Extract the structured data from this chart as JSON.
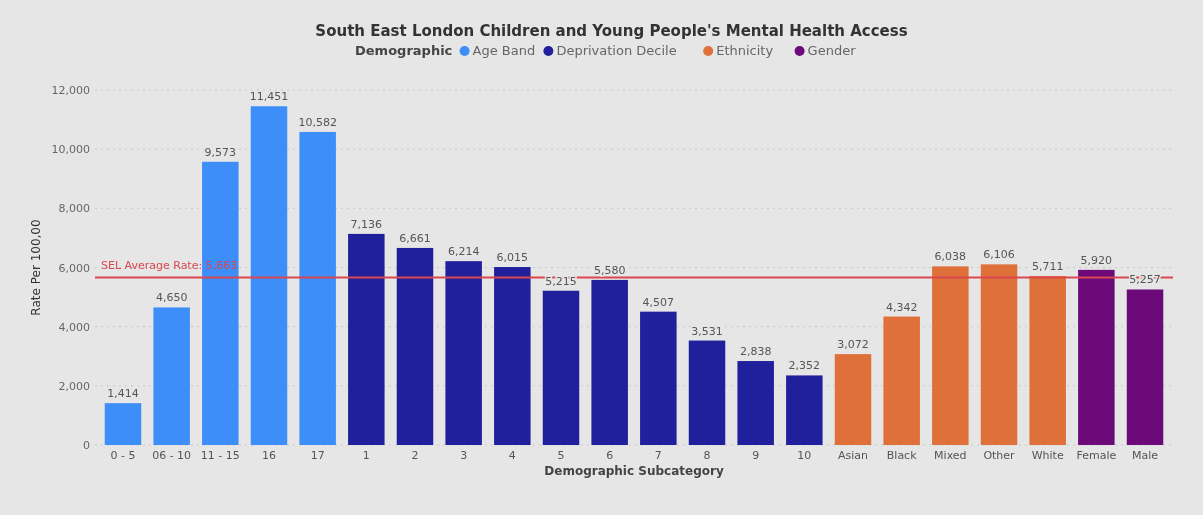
{
  "chart_data": {
    "type": "bar",
    "title": "South East London Children and Young People's Mental Health Access",
    "xlabel": "Demographic Subcategory",
    "ylabel": "Rate Per 100,00",
    "legend_title": "Demographic",
    "legend": "top",
    "categories": [
      "0 - 5",
      "06 - 10",
      "11 - 15",
      "16",
      "17",
      "1",
      "2",
      "3",
      "4",
      "5",
      "6",
      "7",
      "8",
      "9",
      "10",
      "Asian",
      "Black",
      "Mixed",
      "Other",
      "White",
      "Female",
      "Male"
    ],
    "series": [
      {
        "name": "Age Band",
        "color": "#3d8ef8",
        "values": [
          1414,
          4650,
          9573,
          11451,
          10582,
          null,
          null,
          null,
          null,
          null,
          null,
          null,
          null,
          null,
          null,
          null,
          null,
          null,
          null,
          null,
          null,
          null
        ],
        "value_labels": [
          "1,414",
          "4,650",
          "9,573",
          "11,451",
          "10,582",
          null,
          null,
          null,
          null,
          null,
          null,
          null,
          null,
          null,
          null,
          null,
          null,
          null,
          null,
          null,
          null,
          null
        ]
      },
      {
        "name": "Deprivation Decile",
        "color": "#21209c",
        "values": [
          null,
          null,
          null,
          null,
          null,
          7136,
          6661,
          6214,
          6015,
          5215,
          5580,
          4507,
          3531,
          2838,
          2352,
          null,
          null,
          null,
          null,
          null,
          null,
          null
        ],
        "value_labels": [
          null,
          null,
          null,
          null,
          null,
          "7,136",
          "6,661",
          "6,214",
          "6,015",
          "5,215",
          "5,580",
          "4,507",
          "3,531",
          "2,838",
          "2,352",
          null,
          null,
          null,
          null,
          null,
          null,
          null
        ]
      },
      {
        "name": "Ethnicity",
        "color": "#e0703a",
        "values": [
          null,
          null,
          null,
          null,
          null,
          null,
          null,
          null,
          null,
          null,
          null,
          null,
          null,
          null,
          null,
          3072,
          4342,
          6038,
          6106,
          5711,
          null,
          null
        ],
        "value_labels": [
          null,
          null,
          null,
          null,
          null,
          null,
          null,
          null,
          null,
          null,
          null,
          null,
          null,
          null,
          null,
          "3,072",
          "4,342",
          "6,038",
          "6,106",
          "5,711",
          null,
          null
        ]
      },
      {
        "name": "Gender",
        "color": "#6b0a78",
        "values": [
          null,
          null,
          null,
          null,
          null,
          null,
          null,
          null,
          null,
          null,
          null,
          null,
          null,
          null,
          null,
          null,
          null,
          null,
          null,
          null,
          5920,
          5257
        ],
        "value_labels": [
          null,
          null,
          null,
          null,
          null,
          null,
          null,
          null,
          null,
          null,
          null,
          null,
          null,
          null,
          null,
          null,
          null,
          null,
          null,
          null,
          "5,920",
          "5,257"
        ]
      }
    ],
    "ylim": [
      0,
      12000
    ],
    "yticks": [
      {
        "value": 0,
        "label": "0"
      },
      {
        "value": 2000,
        "label": "2,000"
      },
      {
        "value": 4000,
        "label": "4,000"
      },
      {
        "value": 6000,
        "label": "6,000"
      },
      {
        "value": 8000,
        "label": "8,000"
      },
      {
        "value": 10000,
        "label": "10,000"
      },
      {
        "value": 12000,
        "label": "12,000"
      }
    ],
    "grid": "y",
    "ref_lines": [
      {
        "axis": "y",
        "value": 5663,
        "label": "SEL Average Rate: 5,663",
        "color": "#d9474f"
      }
    ]
  }
}
